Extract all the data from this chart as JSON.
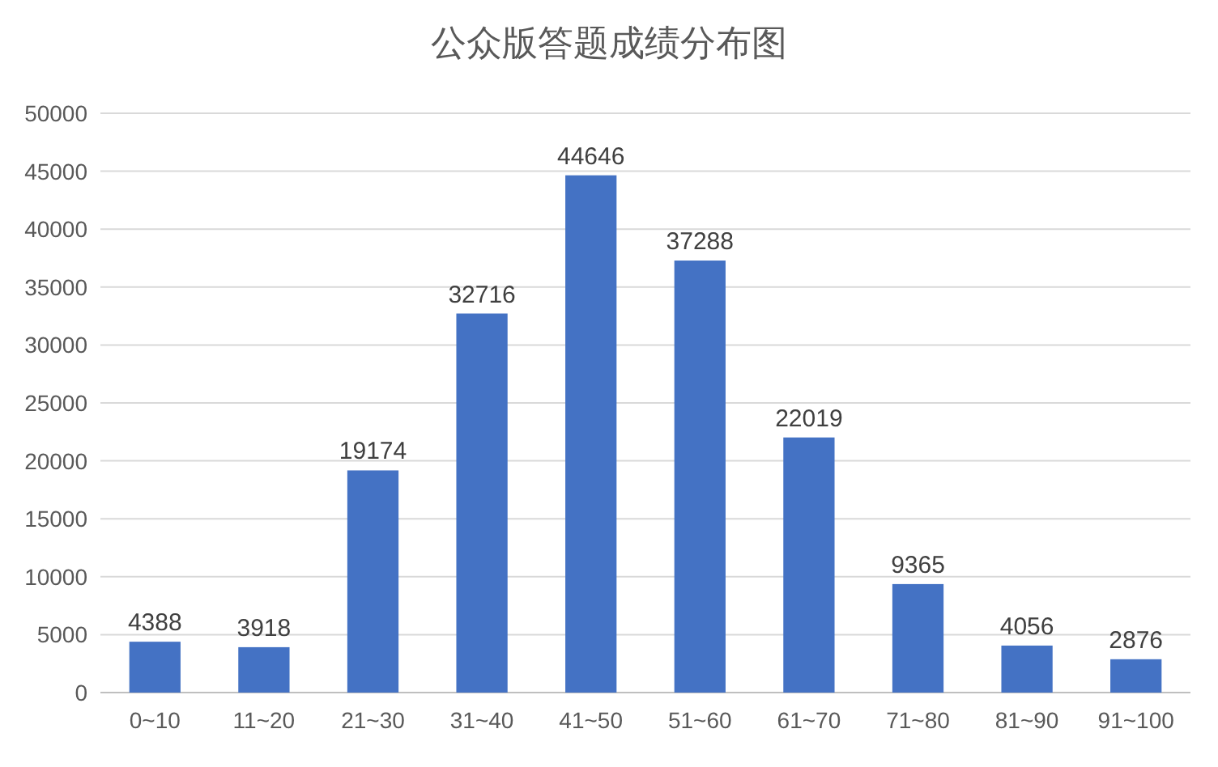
{
  "chart_data": {
    "type": "bar",
    "title": "公众版答题成绩分布图",
    "categories": [
      "0~10",
      "11~20",
      "21~30",
      "31~40",
      "41~50",
      "51~60",
      "61~70",
      "71~80",
      "81~90",
      "91~100"
    ],
    "values": [
      4388,
      3918,
      19174,
      32716,
      44646,
      37288,
      22019,
      9365,
      4056,
      2876
    ],
    "color": "#4472c4",
    "ylim": [
      0,
      50000
    ],
    "yticks": [
      0,
      5000,
      10000,
      15000,
      20000,
      25000,
      30000,
      35000,
      40000,
      45000,
      50000
    ],
    "grid": "y",
    "data_labels": true
  }
}
